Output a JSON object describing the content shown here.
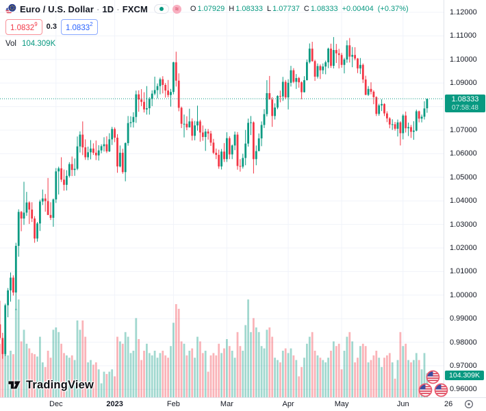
{
  "header": {
    "symbol": "Euro / U.S. Dollar",
    "separator": "·",
    "interval": "1D",
    "exchange": "FXCM",
    "delayed_glyph": "≈",
    "ohlc": {
      "o_label": "O",
      "o_value": "1.07929",
      "h_label": "H",
      "h_value": "1.08333",
      "l_label": "L",
      "l_value": "1.07737",
      "c_label": "C",
      "c_value": "1.08333",
      "change": "+0.00404",
      "change_pct": "(+0.37%)"
    },
    "bid": "1.0832",
    "bid_sup": "9",
    "spread": "0.3",
    "ask": "1.0833",
    "ask_sup": "2",
    "vol_label": "Vol",
    "vol_value": "104.309K"
  },
  "price_axis": {
    "ticks": [
      "1.12000",
      "1.11000",
      "1.10000",
      "1.09000",
      "1.08000",
      "1.07000",
      "1.06000",
      "1.05000",
      "1.04000",
      "1.03000",
      "1.02000",
      "1.01000",
      "1.00000",
      "0.99000",
      "0.98000",
      "0.97000",
      "0.96000"
    ],
    "current_price_label": "1.08333",
    "countdown": "07:58:48",
    "volume_label": "104.309K"
  },
  "time_axis": {
    "ticks": [
      {
        "label": "Dec",
        "bar": 22
      },
      {
        "label": "2023",
        "bar": 44,
        "bold": true
      },
      {
        "label": "Feb",
        "bar": 66
      },
      {
        "label": "Mar",
        "bar": 86
      },
      {
        "label": "Apr",
        "bar": 109
      },
      {
        "label": "May",
        "bar": 129
      },
      {
        "label": "Jun",
        "bar": 152
      },
      {
        "label": "26",
        "bar": 169
      }
    ]
  },
  "watermark": {
    "logo_text": "TradingView"
  },
  "event_markers": {
    "icon": "us-flag-icon",
    "count": 3
  },
  "colors": {
    "up": "#089981",
    "down": "#f23645",
    "blue": "#2962ff",
    "text": "#131722",
    "grid": "#f0f3fa",
    "border": "#e0e3eb"
  },
  "chart_data": {
    "type": "candlestick+volume",
    "title": "Euro / U.S. Dollar",
    "exchange": "FXCM",
    "interval": "1D",
    "grid": true,
    "ylim_visible": [
      0.9566,
      1.1252
    ],
    "price_ticks": [
      1.12,
      1.11,
      1.1,
      1.09,
      1.08,
      1.07,
      1.06,
      1.05,
      1.04,
      1.03,
      1.02,
      1.01,
      1.0,
      0.99,
      0.98,
      0.97,
      0.96
    ],
    "current_price": 1.08333,
    "last": {
      "open": 1.07929,
      "high": 1.08333,
      "low": 1.07737,
      "close": 1.08333,
      "change": 0.00404,
      "change_pct": 0.37,
      "volume_k": 104.309
    },
    "volume_unit": "K",
    "candles_format": [
      "open",
      "high",
      "low",
      "close",
      "volume_k"
    ],
    "candles": [
      [
        0.9884,
        0.9954,
        0.9853,
        0.9876,
        190
      ],
      [
        0.9876,
        0.9976,
        0.981,
        0.9818,
        230
      ],
      [
        0.9818,
        0.984,
        0.973,
        0.975,
        245
      ],
      [
        0.975,
        0.9964,
        0.9741,
        0.9957,
        265
      ],
      [
        0.9957,
        1.003,
        0.9906,
        1.002,
        180
      ],
      [
        1.002,
        1.0096,
        0.9972,
        1.0074,
        200
      ],
      [
        1.0074,
        1.0084,
        0.9998,
        1.0011,
        185
      ],
      [
        1.0011,
        1.0222,
        0.9936,
        1.0209,
        380
      ],
      [
        1.0209,
        1.0364,
        1.0163,
        1.0353,
        420
      ],
      [
        1.0353,
        1.0357,
        1.0271,
        1.0325,
        240
      ],
      [
        1.0325,
        1.0481,
        1.0298,
        1.035,
        290
      ],
      [
        1.035,
        1.0438,
        1.0336,
        1.0393,
        230
      ],
      [
        1.0393,
        1.0398,
        1.0302,
        1.0363,
        210
      ],
      [
        1.0363,
        1.0394,
        1.031,
        1.0325,
        190
      ],
      [
        1.0325,
        1.0335,
        1.0222,
        1.024,
        185
      ],
      [
        1.024,
        1.031,
        1.0227,
        1.0304,
        175
      ],
      [
        1.0304,
        1.0405,
        1.0272,
        1.0397,
        260
      ],
      [
        1.0397,
        1.0448,
        1.0382,
        1.041,
        150
      ],
      [
        1.041,
        1.0429,
        1.0354,
        1.0399,
        130
      ],
      [
        1.0399,
        1.0497,
        1.034,
        1.034,
        200
      ],
      [
        1.034,
        1.0394,
        1.0319,
        1.0328,
        170
      ],
      [
        1.0328,
        1.041,
        1.029,
        1.0406,
        290
      ],
      [
        1.0406,
        1.0539,
        1.0391,
        1.0525,
        300
      ],
      [
        1.0525,
        1.0545,
        1.0427,
        1.0538,
        280
      ],
      [
        1.0538,
        1.0585,
        1.048,
        1.049,
        230
      ],
      [
        1.049,
        1.0533,
        1.0443,
        1.0468,
        190
      ],
      [
        1.0468,
        1.053,
        1.0444,
        1.0506,
        180
      ],
      [
        1.0506,
        1.0564,
        1.0499,
        1.0556,
        170
      ],
      [
        1.0556,
        1.0588,
        1.0505,
        1.0531,
        180
      ],
      [
        1.0531,
        1.058,
        1.0506,
        1.0536,
        160
      ],
      [
        1.0536,
        1.0673,
        1.053,
        1.0631,
        330
      ],
      [
        1.0631,
        1.0695,
        1.0605,
        1.0681,
        290
      ],
      [
        1.0681,
        1.0737,
        1.0594,
        1.0627,
        330
      ],
      [
        1.0627,
        1.0661,
        1.0574,
        1.0585,
        260
      ],
      [
        1.0585,
        1.063,
        1.0573,
        1.0606,
        150
      ],
      [
        1.0606,
        1.0658,
        1.0576,
        1.0622,
        160
      ],
      [
        1.0622,
        1.0644,
        1.0595,
        1.0604,
        140
      ],
      [
        1.0604,
        1.0656,
        1.0573,
        1.0593,
        150
      ],
      [
        1.0593,
        1.0636,
        1.0571,
        1.0614,
        120
      ],
      [
        1.0614,
        1.064,
        1.0602,
        1.0632,
        60
      ],
      [
        1.0632,
        1.067,
        1.0609,
        1.064,
        110
      ],
      [
        1.064,
        1.0674,
        1.0603,
        1.061,
        100
      ],
      [
        1.061,
        1.0687,
        1.0607,
        1.0661,
        110
      ],
      [
        1.0661,
        1.0714,
        1.0637,
        1.0705,
        120
      ],
      [
        1.0705,
        1.0712,
        1.0649,
        1.0668,
        90
      ],
      [
        1.0668,
        1.0683,
        1.0519,
        1.0546,
        260
      ],
      [
        1.0546,
        1.0635,
        1.0542,
        1.0604,
        240
      ],
      [
        1.0604,
        1.0621,
        1.0515,
        1.0522,
        230
      ],
      [
        1.0522,
        1.0648,
        1.0483,
        1.0645,
        280
      ],
      [
        1.0645,
        1.076,
        1.0634,
        1.073,
        260
      ],
      [
        1.073,
        1.0759,
        1.0712,
        1.0734,
        190
      ],
      [
        1.0734,
        1.0776,
        1.0711,
        1.0756,
        200
      ],
      [
        1.0756,
        1.0868,
        1.0731,
        1.0852,
        340
      ],
      [
        1.0852,
        1.0869,
        1.0778,
        1.083,
        250
      ],
      [
        1.083,
        1.0874,
        1.0802,
        1.082,
        160
      ],
      [
        1.082,
        1.0861,
        1.0775,
        1.0788,
        200
      ],
      [
        1.0788,
        1.0887,
        1.0766,
        1.0793,
        230
      ],
      [
        1.0793,
        1.084,
        1.0766,
        1.0832,
        190
      ],
      [
        1.0832,
        1.0869,
        1.0802,
        1.0855,
        180
      ],
      [
        1.0855,
        1.0927,
        1.0848,
        1.087,
        200
      ],
      [
        1.087,
        1.0898,
        1.0835,
        1.0887,
        170
      ],
      [
        1.0887,
        1.0923,
        1.0852,
        1.0916,
        190
      ],
      [
        1.0916,
        1.0929,
        1.0856,
        1.0892,
        200
      ],
      [
        1.0892,
        1.09,
        1.0838,
        1.0868,
        180
      ],
      [
        1.0868,
        1.0913,
        1.0839,
        1.0849,
        170
      ],
      [
        1.0849,
        1.0875,
        1.08,
        1.0862,
        220
      ],
      [
        1.0862,
        1.099,
        1.0852,
        1.0988,
        320
      ],
      [
        1.0988,
        1.1033,
        1.0885,
        1.091,
        400
      ],
      [
        1.091,
        1.0941,
        1.078,
        1.0795,
        380
      ],
      [
        1.0795,
        1.08,
        1.0709,
        1.0727,
        240
      ],
      [
        1.0727,
        1.0766,
        1.0669,
        1.0727,
        230
      ],
      [
        1.0727,
        1.0759,
        1.07,
        1.0712,
        180
      ],
      [
        1.0712,
        1.0791,
        1.0711,
        1.0737,
        200
      ],
      [
        1.0737,
        1.075,
        1.0656,
        1.0676,
        210
      ],
      [
        1.0676,
        1.0739,
        1.0657,
        1.072,
        170
      ],
      [
        1.072,
        1.0804,
        1.0698,
        1.0737,
        260
      ],
      [
        1.0737,
        1.0744,
        1.0651,
        1.069,
        240
      ],
      [
        1.069,
        1.072,
        1.0655,
        1.0671,
        190
      ],
      [
        1.0671,
        1.0706,
        1.0612,
        1.0694,
        200
      ],
      [
        1.0694,
        1.0705,
        1.066,
        1.0686,
        110
      ],
      [
        1.0686,
        1.0697,
        1.0633,
        1.0647,
        180
      ],
      [
        1.0647,
        1.0663,
        1.0598,
        1.0604,
        190
      ],
      [
        1.0604,
        1.0622,
        1.0577,
        1.0595,
        180
      ],
      [
        1.0595,
        1.0617,
        1.0536,
        1.0546,
        230
      ],
      [
        1.0546,
        1.062,
        1.0533,
        1.0609,
        190
      ],
      [
        1.0609,
        1.0645,
        1.0565,
        1.0577,
        210
      ],
      [
        1.0577,
        1.0691,
        1.0565,
        1.0666,
        250
      ],
      [
        1.0666,
        1.0674,
        1.0577,
        1.0597,
        220
      ],
      [
        1.0597,
        1.0639,
        1.0577,
        1.0635,
        200
      ],
      [
        1.0635,
        1.0694,
        1.0615,
        1.0681,
        170
      ],
      [
        1.0681,
        1.0692,
        1.0532,
        1.0548,
        280
      ],
      [
        1.0548,
        1.0577,
        1.0524,
        1.0545,
        220
      ],
      [
        1.0545,
        1.06,
        1.0537,
        1.0582,
        200
      ],
      [
        1.0582,
        1.0701,
        1.0551,
        1.0643,
        310
      ],
      [
        1.0643,
        1.0749,
        1.063,
        1.0731,
        420
      ],
      [
        1.0731,
        1.076,
        1.0679,
        1.0733,
        280
      ],
      [
        1.0733,
        1.0737,
        1.0516,
        1.0577,
        340
      ],
      [
        1.0577,
        1.0635,
        1.0551,
        1.0611,
        300
      ],
      [
        1.0611,
        1.0686,
        1.0611,
        1.0665,
        280
      ],
      [
        1.0665,
        1.0737,
        1.0632,
        1.0722,
        220
      ],
      [
        1.0722,
        1.0789,
        1.0709,
        1.0768,
        210
      ],
      [
        1.0768,
        1.0912,
        1.0758,
        1.0857,
        290
      ],
      [
        1.0857,
        1.093,
        1.0832,
        1.083,
        300
      ],
      [
        1.083,
        1.084,
        1.0714,
        1.076,
        260
      ],
      [
        1.076,
        1.0814,
        1.0745,
        1.0796,
        170
      ],
      [
        1.0796,
        1.0848,
        1.0789,
        1.0845,
        160
      ],
      [
        1.0845,
        1.0868,
        1.0818,
        1.0843,
        150
      ],
      [
        1.0843,
        1.0926,
        1.0824,
        1.0905,
        200
      ],
      [
        1.0905,
        1.0913,
        1.0831,
        1.0839,
        210
      ],
      [
        1.0839,
        1.0916,
        1.0788,
        1.0901,
        190
      ],
      [
        1.0901,
        1.0973,
        1.0885,
        1.0954,
        210
      ],
      [
        1.0954,
        1.0963,
        1.0899,
        1.0905,
        180
      ],
      [
        1.0905,
        1.0938,
        1.0875,
        1.0921,
        160
      ],
      [
        1.0921,
        1.0926,
        1.088,
        1.0903,
        90
      ],
      [
        1.0903,
        1.0907,
        1.0831,
        1.0861,
        130
      ],
      [
        1.0861,
        1.0929,
        1.086,
        1.0912,
        170
      ],
      [
        1.0912,
        1.1,
        1.0911,
        1.0989,
        230
      ],
      [
        1.0989,
        1.1068,
        1.0983,
        1.1046,
        260
      ],
      [
        1.1046,
        1.1075,
        1.099,
        1.0993,
        280
      ],
      [
        1.0993,
        1.0999,
        1.0909,
        1.0927,
        200
      ],
      [
        1.0927,
        1.0983,
        1.0919,
        1.0972,
        180
      ],
      [
        1.0972,
        1.0979,
        1.0917,
        1.0954,
        170
      ],
      [
        1.0954,
        1.0983,
        1.0938,
        1.097,
        160
      ],
      [
        1.097,
        1.0995,
        1.0937,
        1.0988,
        150
      ],
      [
        1.0988,
        1.105,
        1.0963,
        1.1046,
        170
      ],
      [
        1.1046,
        1.1067,
        1.0964,
        1.0973,
        200
      ],
      [
        1.0973,
        1.1095,
        1.0962,
        1.104,
        240
      ],
      [
        1.104,
        1.1066,
        1.0985,
        1.1026,
        220
      ],
      [
        1.1026,
        1.1045,
        1.0962,
        1.1019,
        230
      ],
      [
        1.1019,
        1.1028,
        1.0965,
        1.0977,
        120
      ],
      [
        1.0977,
        1.1007,
        1.0941,
        1.1,
        200
      ],
      [
        1.1,
        1.1081,
        1.0986,
        1.106,
        260
      ],
      [
        1.106,
        1.1091,
        1.0987,
        1.1012,
        280
      ],
      [
        1.1012,
        1.1053,
        1.0967,
        1.1019,
        240
      ],
      [
        1.1019,
        1.1052,
        1.0996,
        1.1004,
        150
      ],
      [
        1.1004,
        1.1006,
        1.0942,
        1.0962,
        170
      ],
      [
        1.0962,
        1.1006,
        1.0938,
        1.0977,
        220
      ],
      [
        1.0977,
        1.0983,
        1.09,
        1.0915,
        230
      ],
      [
        1.0915,
        1.0931,
        1.0848,
        1.085,
        220
      ],
      [
        1.085,
        1.0887,
        1.0845,
        1.0875,
        150
      ],
      [
        1.0875,
        1.0903,
        1.0852,
        1.0863,
        160
      ],
      [
        1.0863,
        1.0869,
        1.081,
        1.084,
        180
      ],
      [
        1.084,
        1.0844,
        1.076,
        1.0769,
        200
      ],
      [
        1.0769,
        1.0812,
        1.0761,
        1.0805,
        170
      ],
      [
        1.0805,
        1.0831,
        1.0781,
        1.0811,
        130
      ],
      [
        1.0811,
        1.0814,
        1.076,
        1.0771,
        170
      ],
      [
        1.0771,
        1.078,
        1.0734,
        1.075,
        180
      ],
      [
        1.075,
        1.0755,
        1.0708,
        1.0724,
        190
      ],
      [
        1.0724,
        1.0746,
        1.0701,
        1.0725,
        150
      ],
      [
        1.0725,
        1.0735,
        1.0698,
        1.0706,
        80
      ],
      [
        1.0706,
        1.0745,
        1.0673,
        1.0733,
        160
      ],
      [
        1.0733,
        1.0738,
        1.0635,
        1.0687,
        280
      ],
      [
        1.0687,
        1.0768,
        1.0661,
        1.0762,
        220
      ],
      [
        1.0762,
        1.0779,
        1.069,
        1.0708,
        230
      ],
      [
        1.0708,
        1.0732,
        1.0675,
        1.0713,
        160
      ],
      [
        1.0713,
        1.0722,
        1.0667,
        1.0693,
        150
      ],
      [
        1.0693,
        1.0738,
        1.0659,
        1.0698,
        160
      ],
      [
        1.0698,
        1.0787,
        1.0695,
        1.078,
        190
      ],
      [
        1.078,
        1.0783,
        1.0733,
        1.0749,
        160
      ],
      [
        1.0749,
        1.0766,
        1.0733,
        1.0757,
        120
      ],
      [
        1.0757,
        1.0823,
        1.0745,
        1.0792,
        190
      ],
      [
        1.07929,
        1.08333,
        1.07737,
        1.08333,
        104.309
      ]
    ]
  }
}
